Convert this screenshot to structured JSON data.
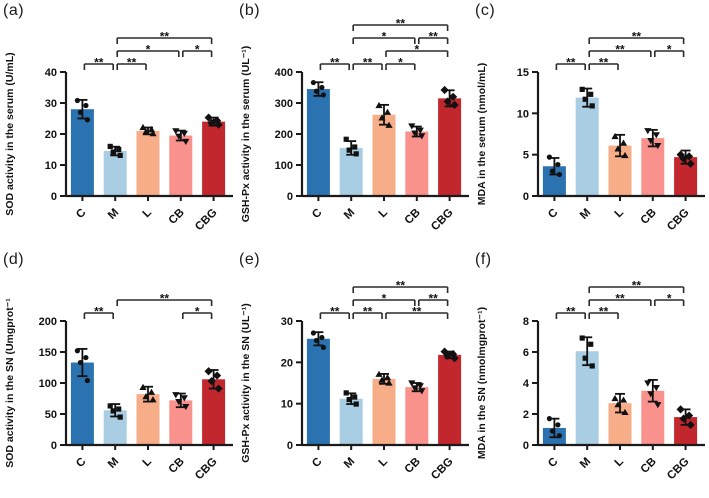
{
  "figure": {
    "background": "#ffffff",
    "axis_color": "#1a1a1a",
    "bracket_color": "#2b2b2b",
    "point_color": "#111111",
    "categories": [
      "C",
      "M",
      "L",
      "CB",
      "CBG"
    ],
    "bar_colors": [
      "#2b72b1",
      "#a9cde2",
      "#f7ae88",
      "#f9928c",
      "#c2272d"
    ],
    "marker_shapes": [
      "circle",
      "square",
      "triangle-up",
      "triangle-down",
      "diamond"
    ]
  },
  "chart_data": [
    {
      "type": "bar",
      "panel_label": "(a)",
      "ylabel": "SOD activity in the serum (U/mL)",
      "xlabel": "",
      "ylim": [
        0,
        40
      ],
      "yticks": [
        0,
        10,
        20,
        30,
        40
      ],
      "categories": [
        "C",
        "M",
        "L",
        "CB",
        "CBG"
      ],
      "values": [
        28,
        14.5,
        21,
        19.5,
        24
      ],
      "errors": [
        3,
        1.4,
        1.1,
        1.6,
        1.3
      ],
      "points": [
        [
          30.8,
          29.2,
          27.0,
          24.6
        ],
        [
          16.0,
          15.0,
          14.2,
          13.1
        ],
        [
          22.1,
          21.4,
          20.7,
          20.1
        ],
        [
          21.0,
          20.2,
          19.3,
          17.6
        ],
        [
          25.3,
          24.3,
          23.6,
          23.0
        ]
      ],
      "significance": [
        {
          "from": "C",
          "to": "M",
          "label": "**",
          "row": 0
        },
        {
          "from": "M",
          "to": "L",
          "label": "**",
          "row": 0
        },
        {
          "from": "M",
          "to": "CB",
          "label": "*",
          "row": 1
        },
        {
          "from": "CB",
          "to": "CBG",
          "label": "*",
          "row": 1
        },
        {
          "from": "M",
          "to": "CBG",
          "label": "**",
          "row": 2
        }
      ]
    },
    {
      "type": "bar",
      "panel_label": "(b)",
      "ylabel": "GSH-Px activity in the serum (UL⁻¹)",
      "xlabel": "",
      "ylim": [
        0,
        400
      ],
      "yticks": [
        0,
        100,
        200,
        300,
        400
      ],
      "categories": [
        "C",
        "M",
        "L",
        "CB",
        "CBG"
      ],
      "values": [
        345,
        155,
        262,
        208,
        315
      ],
      "errors": [
        22,
        22,
        32,
        16,
        26
      ],
      "points": [
        [
          366,
          350,
          338,
          326
        ],
        [
          183,
          158,
          148,
          136
        ],
        [
          292,
          270,
          252,
          228
        ],
        [
          226,
          212,
          203,
          194
        ],
        [
          342,
          320,
          305,
          294
        ]
      ],
      "significance": [
        {
          "from": "C",
          "to": "M",
          "label": "**",
          "row": 0
        },
        {
          "from": "M",
          "to": "L",
          "label": "**",
          "row": 0
        },
        {
          "from": "L",
          "to": "CB",
          "label": "*",
          "row": 0
        },
        {
          "from": "L",
          "to": "CBG",
          "label": "*",
          "row": 1
        },
        {
          "from": "M",
          "to": "CB",
          "label": "*",
          "row": 2
        },
        {
          "from": "CB",
          "to": "CBG",
          "label": "**",
          "row": 2
        },
        {
          "from": "M",
          "to": "CBG",
          "label": "**",
          "row": 3
        }
      ]
    },
    {
      "type": "bar",
      "panel_label": "(c)",
      "ylabel": "MDA in the serum (nmol/mL)",
      "xlabel": "",
      "ylim": [
        0,
        15
      ],
      "yticks": [
        0,
        5,
        10,
        15
      ],
      "categories": [
        "C",
        "M",
        "L",
        "CB",
        "CBG"
      ],
      "values": [
        3.6,
        11.9,
        6.1,
        7.0,
        4.7
      ],
      "errors": [
        1.0,
        1.1,
        1.3,
        1.0,
        0.8
      ],
      "points": [
        [
          4.7,
          3.8,
          3.0,
          2.6
        ],
        [
          12.9,
          12.3,
          11.7,
          10.9
        ],
        [
          7.2,
          6.4,
          5.7,
          4.9
        ],
        [
          7.9,
          7.4,
          6.7,
          6.1
        ],
        [
          5.0,
          4.8,
          4.5,
          3.9
        ]
      ],
      "significance": [
        {
          "from": "C",
          "to": "M",
          "label": "**",
          "row": 0
        },
        {
          "from": "M",
          "to": "L",
          "label": "**",
          "row": 0
        },
        {
          "from": "M",
          "to": "CB",
          "label": "**",
          "row": 1
        },
        {
          "from": "CB",
          "to": "CBG",
          "label": "*",
          "row": 1
        },
        {
          "from": "M",
          "to": "CBG",
          "label": "**",
          "row": 2
        }
      ]
    },
    {
      "type": "bar",
      "panel_label": "(d)",
      "ylabel": "SOD activity in the SN (Umgprot⁻¹",
      "xlabel": "",
      "ylim": [
        0,
        200
      ],
      "yticks": [
        0,
        50,
        100,
        150,
        200
      ],
      "categories": [
        "C",
        "M",
        "L",
        "CB",
        "CBG"
      ],
      "values": [
        133,
        56,
        82,
        72,
        106
      ],
      "errors": [
        22,
        10,
        12,
        11,
        15
      ],
      "points": [
        [
          152,
          141,
          133,
          104
        ],
        [
          63,
          58,
          55,
          45
        ],
        [
          93,
          85,
          78,
          73
        ],
        [
          81,
          76,
          70,
          62
        ],
        [
          119,
          112,
          103,
          91
        ]
      ],
      "significance": [
        {
          "from": "C",
          "to": "M",
          "label": "**",
          "row": 0
        },
        {
          "from": "CB",
          "to": "CBG",
          "label": "*",
          "row": 0
        },
        {
          "from": "M",
          "to": "CBG",
          "label": "**",
          "row": 1
        }
      ]
    },
    {
      "type": "bar",
      "panel_label": "(e)",
      "ylabel": "GSH-Px activity in the SN (UL⁻¹)",
      "xlabel": "",
      "ylim": [
        0,
        30
      ],
      "yticks": [
        0,
        10,
        20,
        30
      ],
      "categories": [
        "C",
        "M",
        "L",
        "CB",
        "CBG"
      ],
      "values": [
        25.7,
        11.2,
        16.0,
        14.0,
        21.8
      ],
      "errors": [
        1.6,
        1.3,
        1.2,
        1.0,
        0.8
      ],
      "points": [
        [
          27.1,
          26.0,
          25.3,
          23.6
        ],
        [
          12.6,
          11.6,
          11.0,
          9.9
        ],
        [
          17.1,
          16.3,
          15.7,
          15.0
        ],
        [
          15.0,
          14.3,
          13.8,
          13.1
        ],
        [
          22.6,
          22.0,
          21.6,
          21.0
        ]
      ],
      "significance": [
        {
          "from": "C",
          "to": "M",
          "label": "**",
          "row": 0
        },
        {
          "from": "M",
          "to": "L",
          "label": "**",
          "row": 0
        },
        {
          "from": "L",
          "to": "CBG",
          "label": "**",
          "row": 0
        },
        {
          "from": "M",
          "to": "CB",
          "label": "*",
          "row": 1
        },
        {
          "from": "CB",
          "to": "CBG",
          "label": "**",
          "row": 1
        },
        {
          "from": "M",
          "to": "CBG",
          "label": "**",
          "row": 2
        }
      ]
    },
    {
      "type": "bar",
      "panel_label": "(f)",
      "ylabel": "MDA in the SN (nmolmgprot⁻¹)",
      "xlabel": "",
      "ylim": [
        0,
        8
      ],
      "yticks": [
        0,
        2,
        4,
        6,
        8
      ],
      "categories": [
        "C",
        "M",
        "L",
        "CB",
        "CBG"
      ],
      "values": [
        1.1,
        6.05,
        2.7,
        3.5,
        1.8
      ],
      "errors": [
        0.6,
        0.9,
        0.6,
        0.7,
        0.5
      ],
      "points": [
        [
          1.7,
          1.3,
          0.9,
          0.6
        ],
        [
          6.9,
          6.5,
          5.6,
          5.1
        ],
        [
          3.0,
          2.9,
          2.6,
          2.1
        ],
        [
          4.0,
          3.7,
          3.3,
          2.6
        ],
        [
          2.3,
          1.9,
          1.7,
          1.3
        ]
      ],
      "significance": [
        {
          "from": "C",
          "to": "M",
          "label": "**",
          "row": 0
        },
        {
          "from": "M",
          "to": "L",
          "label": "**",
          "row": 0
        },
        {
          "from": "M",
          "to": "CB",
          "label": "**",
          "row": 1
        },
        {
          "from": "CB",
          "to": "CBG",
          "label": "*",
          "row": 1
        },
        {
          "from": "M",
          "to": "CBG",
          "label": "**",
          "row": 2
        }
      ]
    }
  ]
}
